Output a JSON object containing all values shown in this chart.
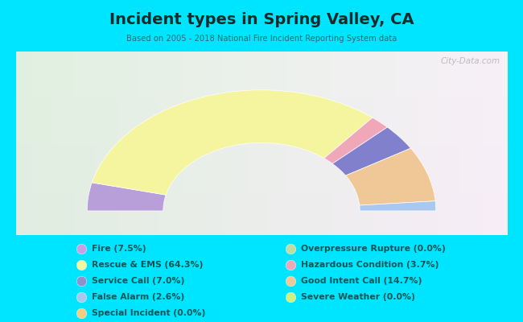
{
  "title": "Incident types in Spring Valley, CA",
  "subtitle": "Based on 2005 - 2018 National Fire Incident Reporting System data",
  "bg_color": "#00e5ff",
  "chart_box_color": "#e8f5e8",
  "categories": [
    "Fire",
    "Rescue & EMS",
    "Service Call",
    "False Alarm",
    "Special Incident",
    "Overpressure Rupture",
    "Hazardous Condition",
    "Good Intent Call",
    "Severe Weather"
  ],
  "arc_order_indices": [
    0,
    1,
    6,
    2,
    7,
    3
  ],
  "arc_pcts": [
    7.5,
    64.3,
    3.7,
    7.0,
    14.7,
    2.6
  ],
  "arc_colors": [
    "#b89fda",
    "#f5f5a0",
    "#f0a8b8",
    "#8080cc",
    "#f0c898",
    "#a8c8f0"
  ],
  "colors_legend": [
    "#c9a0e8",
    "#f5f5a0",
    "#9090cc",
    "#a8c8f0",
    "#f5cc80",
    "#c0dca0",
    "#f0a8b8",
    "#f0c898",
    "#d0f080"
  ],
  "legend_labels": [
    "Fire (7.5%)",
    "Rescue & EMS (64.3%)",
    "Service Call (7.0%)",
    "False Alarm (2.6%)",
    "Special Incident (0.0%)",
    "Overpressure Rupture (0.0%)",
    "Hazardous Condition (3.7%)",
    "Good Intent Call (14.7%)",
    "Severe Weather (0.0%)"
  ],
  "watermark": "City-Data.com",
  "title_color": "#1a2a2a",
  "subtitle_color": "#336666",
  "legend_text_color": "#005555",
  "outer_r": 1.1,
  "inner_r": 0.62
}
